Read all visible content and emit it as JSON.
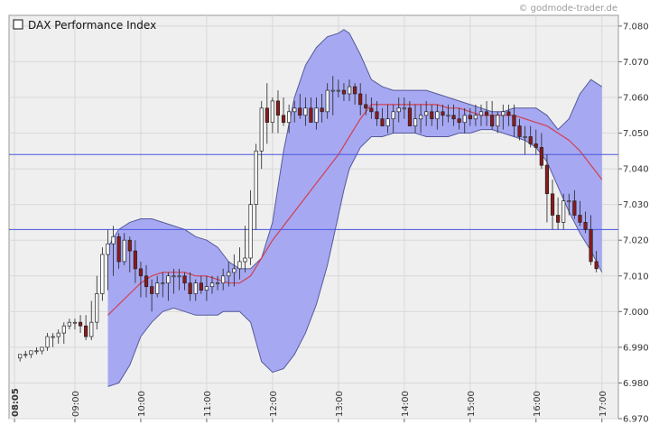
{
  "watermark": "© godmode-trader.de",
  "chart_data": {
    "type": "candlestick",
    "title": "DAX Performance Index",
    "legend_placement": "top-left",
    "grid": true,
    "ylim": [
      6970,
      7083
    ],
    "y_ticks": [
      "7.080",
      "7.070",
      "7.060",
      "7.050",
      "7.040",
      "7.030",
      "7.020",
      "7.010",
      "7.000",
      "6.990",
      "6.980",
      "6.970"
    ],
    "y_tick_values": [
      7080,
      7070,
      7060,
      7050,
      7040,
      7030,
      7020,
      7010,
      7000,
      6990,
      6980,
      6970
    ],
    "x_range": [
      "08:00",
      "17:15"
    ],
    "x_ticks": [
      "08:05",
      "09:00",
      "10:00",
      "11:00",
      "12:00",
      "13:00",
      "14:00",
      "15:00",
      "16:00",
      "17:00"
    ],
    "x_tick_minutes": [
      485,
      540,
      600,
      660,
      720,
      780,
      840,
      900,
      960,
      1020
    ],
    "horizontal_lines": [
      7044,
      7023
    ],
    "colors": {
      "band_fill": "#a6a8f2",
      "band_edge": "#555a9a",
      "middle_line": "#d04050",
      "hline": "#4a56dd",
      "candle_up": "#ffffff",
      "candle_down": "#8b1a1a",
      "candle_outline": "#222222",
      "plot_bg": "#efefef",
      "grid": "#d8d8d8"
    },
    "series": [
      {
        "name": "Bollinger Upper",
        "x": [
          570,
          580,
          590,
          600,
          610,
          620,
          630,
          640,
          650,
          660,
          670,
          675,
          680,
          690,
          700,
          710,
          720,
          730,
          740,
          750,
          760,
          770,
          780,
          785,
          790,
          800,
          810,
          820,
          830,
          840,
          850,
          860,
          870,
          880,
          890,
          900,
          910,
          920,
          930,
          940,
          950,
          960,
          970,
          980,
          990,
          1000,
          1010,
          1020
        ],
        "y": [
          7018,
          7023,
          7025,
          7026,
          7026,
          7025,
          7024,
          7023,
          7021,
          7020,
          7018,
          7016,
          7014,
          7012,
          7012,
          7015,
          7025,
          7045,
          7060,
          7069,
          7074,
          7077,
          7078,
          7079,
          7078,
          7072,
          7065,
          7063,
          7062,
          7062,
          7062,
          7062,
          7061,
          7060,
          7059,
          7058,
          7057,
          7056,
          7056,
          7057,
          7057,
          7057,
          7055,
          7051,
          7054,
          7061,
          7065,
          7063
        ]
      },
      {
        "name": "Bollinger Lower",
        "x": [
          570,
          580,
          590,
          600,
          610,
          620,
          630,
          640,
          650,
          660,
          670,
          675,
          680,
          690,
          700,
          710,
          720,
          730,
          740,
          750,
          760,
          770,
          780,
          785,
          790,
          800,
          810,
          820,
          830,
          840,
          850,
          860,
          870,
          880,
          890,
          900,
          910,
          920,
          930,
          940,
          950,
          960,
          970,
          980,
          990,
          1000,
          1010,
          1020
        ],
        "y": [
          6979,
          6980,
          6985,
          6993,
          6997,
          7000,
          7001,
          7000,
          6999,
          6999,
          6999,
          7000,
          7000,
          7000,
          6997,
          6986,
          6983,
          6984,
          6988,
          6994,
          7002,
          7013,
          7027,
          7034,
          7040,
          7046,
          7049,
          7049,
          7050,
          7050,
          7050,
          7049,
          7049,
          7049,
          7050,
          7050,
          7051,
          7051,
          7050,
          7049,
          7048,
          7046,
          7042,
          7035,
          7028,
          7022,
          7017,
          7011
        ]
      },
      {
        "name": "Bollinger Middle",
        "x": [
          570,
          580,
          590,
          600,
          610,
          620,
          630,
          640,
          650,
          660,
          670,
          680,
          690,
          700,
          710,
          720,
          730,
          740,
          750,
          760,
          770,
          780,
          790,
          800,
          810,
          820,
          830,
          840,
          850,
          860,
          870,
          880,
          890,
          900,
          910,
          920,
          930,
          940,
          950,
          960,
          970,
          980,
          990,
          1000,
          1010,
          1020
        ],
        "y": [
          6999,
          7002,
          7005,
          7008,
          7010,
          7011,
          7011,
          7011,
          7010,
          7010,
          7009,
          7008,
          7008,
          7010,
          7015,
          7020,
          7024,
          7028,
          7032,
          7036,
          7040,
          7044,
          7049,
          7054,
          7058,
          7058,
          7058,
          7058,
          7058,
          7058,
          7058,
          7057,
          7057,
          7056,
          7055,
          7055,
          7055,
          7055,
          7054,
          7053,
          7052,
          7050,
          7048,
          7045,
          7041,
          7037
        ]
      }
    ],
    "candles": {
      "t": [
        490,
        495,
        500,
        505,
        510,
        515,
        520,
        525,
        530,
        535,
        540,
        545,
        550,
        555,
        560,
        565,
        570,
        575,
        580,
        585,
        590,
        595,
        600,
        605,
        610,
        615,
        620,
        625,
        630,
        635,
        640,
        645,
        650,
        655,
        660,
        665,
        670,
        675,
        680,
        685,
        690,
        695,
        700,
        705,
        710,
        715,
        720,
        725,
        730,
        735,
        740,
        745,
        750,
        755,
        760,
        765,
        770,
        775,
        780,
        785,
        790,
        795,
        800,
        805,
        810,
        815,
        820,
        825,
        830,
        835,
        840,
        845,
        850,
        855,
        860,
        865,
        870,
        875,
        880,
        885,
        890,
        895,
        900,
        905,
        910,
        915,
        920,
        925,
        930,
        935,
        940,
        945,
        950,
        955,
        960,
        965,
        970,
        975,
        980,
        985,
        990,
        995,
        1000,
        1005,
        1010,
        1015
      ],
      "open": [
        6987,
        6988,
        6988,
        6989,
        6989,
        6990,
        6993,
        6993,
        6994,
        6996,
        6997,
        6997,
        6996,
        6993,
        6997,
        7005,
        7016,
        7019,
        7021,
        7014,
        7020,
        7017,
        7012,
        7010,
        7007,
        7005,
        7008,
        7008,
        7010,
        7010,
        7010,
        7008,
        7005,
        7008,
        7006,
        7007,
        7008,
        7008,
        7010,
        7011,
        7012,
        7014,
        7015,
        7030,
        7045,
        7057,
        7053,
        7059,
        7055,
        7053,
        7056,
        7057,
        7055,
        7057,
        7053,
        7057,
        7056,
        7062,
        7062,
        7062,
        7061,
        7063,
        7061,
        7058,
        7057,
        7056,
        7054,
        7052,
        7054,
        7056,
        7057,
        7057,
        7052,
        7054,
        7055,
        7056,
        7054,
        7056,
        7055,
        7055,
        7054,
        7053,
        7055,
        7054,
        7055,
        7056,
        7055,
        7052,
        7055,
        7056,
        7055,
        7052,
        7049,
        7049,
        7047,
        7046,
        7041,
        7033,
        7027,
        7025,
        7031,
        7031,
        7027,
        7025,
        7023,
        7014
      ],
      "high": [
        6988,
        6989,
        6989,
        6990,
        6990,
        6994,
        6994,
        6995,
        6997,
        6998,
        6998,
        6999,
        6999,
        7003,
        7010,
        7018,
        7023,
        7024,
        7022,
        7022,
        7021,
        7020,
        7014,
        7013,
        7009,
        7010,
        7011,
        7011,
        7012,
        7012,
        7011,
        7011,
        7009,
        7010,
        7010,
        7010,
        7010,
        7012,
        7014,
        7016,
        7018,
        7024,
        7034,
        7047,
        7059,
        7064,
        7060,
        7062,
        7060,
        7058,
        7059,
        7061,
        7060,
        7060,
        7060,
        7061,
        7064,
        7066,
        7065,
        7064,
        7065,
        7064,
        7064,
        7061,
        7060,
        7059,
        7057,
        7058,
        7058,
        7060,
        7060,
        7059,
        7058,
        7058,
        7059,
        7058,
        7058,
        7058,
        7058,
        7058,
        7057,
        7057,
        7057,
        7058,
        7058,
        7059,
        7059,
        7056,
        7058,
        7058,
        7058,
        7054,
        7052,
        7052,
        7051,
        7050,
        7044,
        7037,
        7032,
        7033,
        7033,
        7034,
        7031,
        7028,
        7027,
        7017
      ],
      "low": [
        6986,
        6987,
        6987,
        6988,
        6988,
        6989,
        6990,
        6991,
        6991,
        6995,
        6995,
        6994,
        6992,
        6992,
        6995,
        7003,
        7006,
        7010,
        7012,
        7013,
        7011,
        7008,
        7004,
        7004,
        7000,
        7004,
        7004,
        7003,
        7005,
        7006,
        7006,
        7003,
        7003,
        7005,
        7003,
        7005,
        7006,
        7006,
        7007,
        7007,
        7009,
        7011,
        7013,
        7023,
        7040,
        7047,
        7050,
        7050,
        7052,
        7050,
        7053,
        7054,
        7052,
        7054,
        7051,
        7053,
        7054,
        7055,
        7060,
        7059,
        7059,
        7058,
        7055,
        7055,
        7054,
        7052,
        7052,
        7050,
        7050,
        7053,
        7054,
        7052,
        7050,
        7050,
        7052,
        7052,
        7051,
        7052,
        7053,
        7052,
        7051,
        7050,
        7052,
        7052,
        7052,
        7052,
        7051,
        7050,
        7051,
        7052,
        7049,
        7048,
        7044,
        7046,
        7044,
        7040,
        7025,
        7023,
        7023,
        7023,
        7027,
        7026,
        7024,
        7022,
        7013,
        7011
      ],
      "close": [
        6988,
        6988,
        6989,
        6989,
        6990,
        6993,
        6993,
        6994,
        6996,
        6997,
        6997,
        6996,
        6993,
        6997,
        7005,
        7016,
        7019,
        7021,
        7014,
        7020,
        7017,
        7012,
        7010,
        7007,
        7005,
        7008,
        7008,
        7010,
        7010,
        7010,
        7008,
        7005,
        7008,
        7006,
        7007,
        7008,
        7008,
        7010,
        7011,
        7012,
        7014,
        7015,
        7030,
        7045,
        7057,
        7053,
        7059,
        7055,
        7053,
        7056,
        7057,
        7055,
        7057,
        7053,
        7057,
        7056,
        7062,
        7062,
        7062,
        7061,
        7063,
        7061,
        7058,
        7057,
        7056,
        7054,
        7052,
        7054,
        7056,
        7057,
        7057,
        7052,
        7054,
        7055,
        7056,
        7054,
        7056,
        7055,
        7055,
        7054,
        7053,
        7055,
        7054,
        7055,
        7056,
        7055,
        7052,
        7055,
        7056,
        7055,
        7052,
        7049,
        7049,
        7047,
        7046,
        7041,
        7033,
        7027,
        7025,
        7031,
        7031,
        7027,
        7025,
        7023,
        7014,
        7012
      ]
    }
  }
}
